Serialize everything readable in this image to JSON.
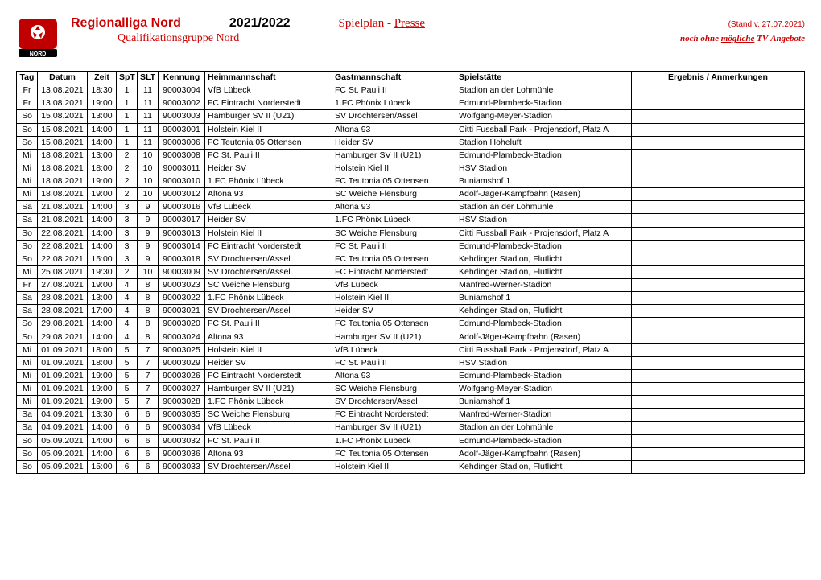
{
  "header": {
    "league": "Regionalliga Nord",
    "season": "2021/2022",
    "spielplan_label": "Spielplan - ",
    "spielplan_presse": "Presse",
    "stand": "(Stand v. 27.07.2021)",
    "group": "Qualifikationsgruppe Nord",
    "note_prefix": "noch ohne ",
    "note_underline": "mögliche",
    "note_suffix": " TV-Angebote",
    "colors": {
      "red": "#cc0000",
      "black": "#000000"
    },
    "fontsize": {
      "league": 16,
      "season": 16,
      "spielplan": 15,
      "group": 14,
      "stand": 10,
      "note": 11
    }
  },
  "table": {
    "columns": [
      {
        "key": "tag",
        "label": "Tag",
        "align": "center"
      },
      {
        "key": "datum",
        "label": "Datum",
        "align": "center"
      },
      {
        "key": "zeit",
        "label": "Zeit",
        "align": "center"
      },
      {
        "key": "spt",
        "label": "SpT",
        "align": "center"
      },
      {
        "key": "slt",
        "label": "SLT",
        "align": "center"
      },
      {
        "key": "kennung",
        "label": "Kennung",
        "align": "center"
      },
      {
        "key": "heim",
        "label": "Heimmannschaft",
        "align": "left"
      },
      {
        "key": "gast",
        "label": "Gastmannschaft",
        "align": "left"
      },
      {
        "key": "spiel",
        "label": "Spielstätte",
        "align": "left"
      },
      {
        "key": "erg",
        "label": "Ergebnis / Anmerkungen",
        "align": "center"
      }
    ],
    "rows": [
      [
        "Fr",
        "13.08.2021",
        "18:30",
        "1",
        "11",
        "90003004",
        "VfB Lübeck",
        "FC St. Pauli II",
        "Stadion an der Lohmühle",
        ""
      ],
      [
        "Fr",
        "13.08.2021",
        "19:00",
        "1",
        "11",
        "90003002",
        "FC Eintracht Norderstedt",
        "1.FC Phönix Lübeck",
        "Edmund-Plambeck-Stadion",
        ""
      ],
      [
        "So",
        "15.08.2021",
        "13:00",
        "1",
        "11",
        "90003003",
        "Hamburger SV II (U21)",
        "SV Drochtersen/Assel",
        "Wolfgang-Meyer-Stadion",
        ""
      ],
      [
        "So",
        "15.08.2021",
        "14:00",
        "1",
        "11",
        "90003001",
        "Holstein Kiel II",
        "Altona 93",
        "Citti Fussball Park - Projensdorf, Platz A",
        ""
      ],
      [
        "So",
        "15.08.2021",
        "14:00",
        "1",
        "11",
        "90003006",
        "FC Teutonia 05 Ottensen",
        "Heider SV",
        "Stadion Hoheluft",
        ""
      ],
      [
        "Mi",
        "18.08.2021",
        "13:00",
        "2",
        "10",
        "90003008",
        "FC St. Pauli II",
        "Hamburger SV II (U21)",
        "Edmund-Plambeck-Stadion",
        ""
      ],
      [
        "Mi",
        "18.08.2021",
        "18:00",
        "2",
        "10",
        "90003011",
        "Heider SV",
        "Holstein Kiel II",
        "HSV Stadion",
        ""
      ],
      [
        "Mi",
        "18.08.2021",
        "19:00",
        "2",
        "10",
        "90003010",
        "1.FC Phönix Lübeck",
        "FC Teutonia 05 Ottensen",
        "Buniamshof 1",
        ""
      ],
      [
        "Mi",
        "18.08.2021",
        "19:00",
        "2",
        "10",
        "90003012",
        "Altona 93",
        "SC Weiche Flensburg",
        "Adolf-Jäger-Kampfbahn (Rasen)",
        ""
      ],
      [
        "Sa",
        "21.08.2021",
        "14:00",
        "3",
        "9",
        "90003016",
        "VfB Lübeck",
        "Altona 93",
        "Stadion an der Lohmühle",
        ""
      ],
      [
        "Sa",
        "21.08.2021",
        "14:00",
        "3",
        "9",
        "90003017",
        "Heider SV",
        "1.FC Phönix Lübeck",
        "HSV Stadion",
        ""
      ],
      [
        "So",
        "22.08.2021",
        "14:00",
        "3",
        "9",
        "90003013",
        "Holstein Kiel II",
        "SC Weiche Flensburg",
        "Citti Fussball Park - Projensdorf, Platz A",
        ""
      ],
      [
        "So",
        "22.08.2021",
        "14:00",
        "3",
        "9",
        "90003014",
        "FC Eintracht Norderstedt",
        "FC St. Pauli II",
        "Edmund-Plambeck-Stadion",
        ""
      ],
      [
        "So",
        "22.08.2021",
        "15:00",
        "3",
        "9",
        "90003018",
        "SV Drochtersen/Assel",
        "FC Teutonia 05 Ottensen",
        "Kehdinger Stadion, Flutlicht",
        ""
      ],
      [
        "Mi",
        "25.08.2021",
        "19:30",
        "2",
        "10",
        "90003009",
        "SV Drochtersen/Assel",
        "FC Eintracht Norderstedt",
        "Kehdinger Stadion, Flutlicht",
        ""
      ],
      [
        "Fr",
        "27.08.2021",
        "19:00",
        "4",
        "8",
        "90003023",
        "SC Weiche Flensburg",
        "VfB Lübeck",
        "Manfred-Werner-Stadion",
        ""
      ],
      [
        "Sa",
        "28.08.2021",
        "13:00",
        "4",
        "8",
        "90003022",
        "1.FC Phönix Lübeck",
        "Holstein Kiel II",
        "Buniamshof 1",
        ""
      ],
      [
        "Sa",
        "28.08.2021",
        "17:00",
        "4",
        "8",
        "90003021",
        "SV Drochtersen/Assel",
        "Heider SV",
        "Kehdinger Stadion, Flutlicht",
        ""
      ],
      [
        "So",
        "29.08.2021",
        "14:00",
        "4",
        "8",
        "90003020",
        "FC St. Pauli II",
        "FC Teutonia 05 Ottensen",
        "Edmund-Plambeck-Stadion",
        ""
      ],
      [
        "So",
        "29.08.2021",
        "14:00",
        "4",
        "8",
        "90003024",
        "Altona 93",
        "Hamburger SV II (U21)",
        "Adolf-Jäger-Kampfbahn (Rasen)",
        ""
      ],
      [
        "Mi",
        "01.09.2021",
        "18:00",
        "5",
        "7",
        "90003025",
        "Holstein Kiel II",
        "VfB Lübeck",
        "Citti Fussball Park - Projensdorf, Platz A",
        ""
      ],
      [
        "Mi",
        "01.09.2021",
        "18:00",
        "5",
        "7",
        "90003029",
        "Heider SV",
        "FC St. Pauli II",
        "HSV Stadion",
        ""
      ],
      [
        "Mi",
        "01.09.2021",
        "19:00",
        "5",
        "7",
        "90003026",
        "FC Eintracht Norderstedt",
        "Altona 93",
        "Edmund-Plambeck-Stadion",
        ""
      ],
      [
        "Mi",
        "01.09.2021",
        "19:00",
        "5",
        "7",
        "90003027",
        "Hamburger SV II (U21)",
        "SC Weiche Flensburg",
        "Wolfgang-Meyer-Stadion",
        ""
      ],
      [
        "Mi",
        "01.09.2021",
        "19:00",
        "5",
        "7",
        "90003028",
        "1.FC Phönix Lübeck",
        "SV Drochtersen/Assel",
        "Buniamshof 1",
        ""
      ],
      [
        "Sa",
        "04.09.2021",
        "13:30",
        "6",
        "6",
        "90003035",
        "SC Weiche Flensburg",
        "FC Eintracht Norderstedt",
        "Manfred-Werner-Stadion",
        ""
      ],
      [
        "Sa",
        "04.09.2021",
        "14:00",
        "6",
        "6",
        "90003034",
        "VfB Lübeck",
        "Hamburger SV II (U21)",
        "Stadion an der Lohmühle",
        ""
      ],
      [
        "So",
        "05.09.2021",
        "14:00",
        "6",
        "6",
        "90003032",
        "FC St. Pauli II",
        "1.FC Phönix Lübeck",
        "Edmund-Plambeck-Stadion",
        ""
      ],
      [
        "So",
        "05.09.2021",
        "14:00",
        "6",
        "6",
        "90003036",
        "Altona 93",
        "FC Teutonia 05 Ottensen",
        "Adolf-Jäger-Kampfbahn (Rasen)",
        ""
      ],
      [
        "So",
        "05.09.2021",
        "15:00",
        "6",
        "6",
        "90003033",
        "SV Drochtersen/Assel",
        "Holstein Kiel II",
        "Kehdinger Stadion, Flutlicht",
        ""
      ]
    ]
  }
}
